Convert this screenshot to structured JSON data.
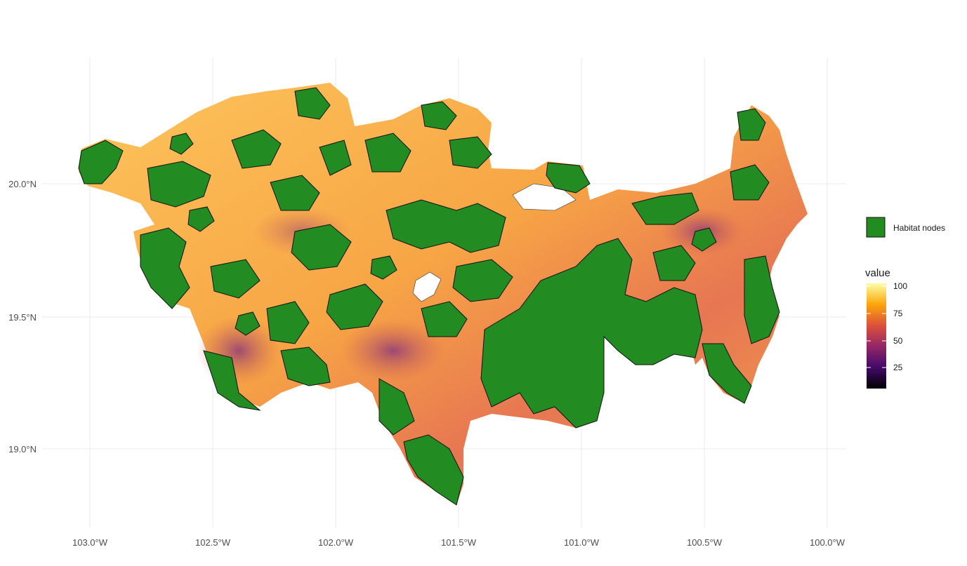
{
  "chart_data": {
    "type": "heatmap",
    "title": "",
    "xlabel": "",
    "ylabel": "",
    "x_ticks": [
      "103.0°W",
      "102.5°W",
      "102.0°W",
      "101.5°W",
      "101.0°W",
      "100.5°W",
      "100.0°W"
    ],
    "y_ticks": [
      "20.0°N",
      "19.5°N",
      "19.0°N"
    ],
    "xlim": [
      -103.05,
      -99.95
    ],
    "ylim": [
      18.75,
      20.4
    ],
    "grid": true,
    "legend_position": "right",
    "layers": [
      {
        "name": "Habitat nodes",
        "kind": "polygon-fill",
        "color": "#228B22"
      },
      {
        "name": "value",
        "kind": "raster-gradient",
        "scale": "inferno",
        "range": [
          0,
          100
        ],
        "ticks": [
          "100",
          "75",
          "50",
          "25"
        ]
      }
    ],
    "raster_color_stops": [
      "#000004",
      "#420a68",
      "#932667",
      "#dd513a",
      "#fca50a",
      "#fcffa4"
    ]
  },
  "legend": {
    "nodes_label": "Habitat nodes",
    "value_title": "value",
    "value_ticks": [
      "100",
      "75",
      "50",
      "25"
    ]
  }
}
